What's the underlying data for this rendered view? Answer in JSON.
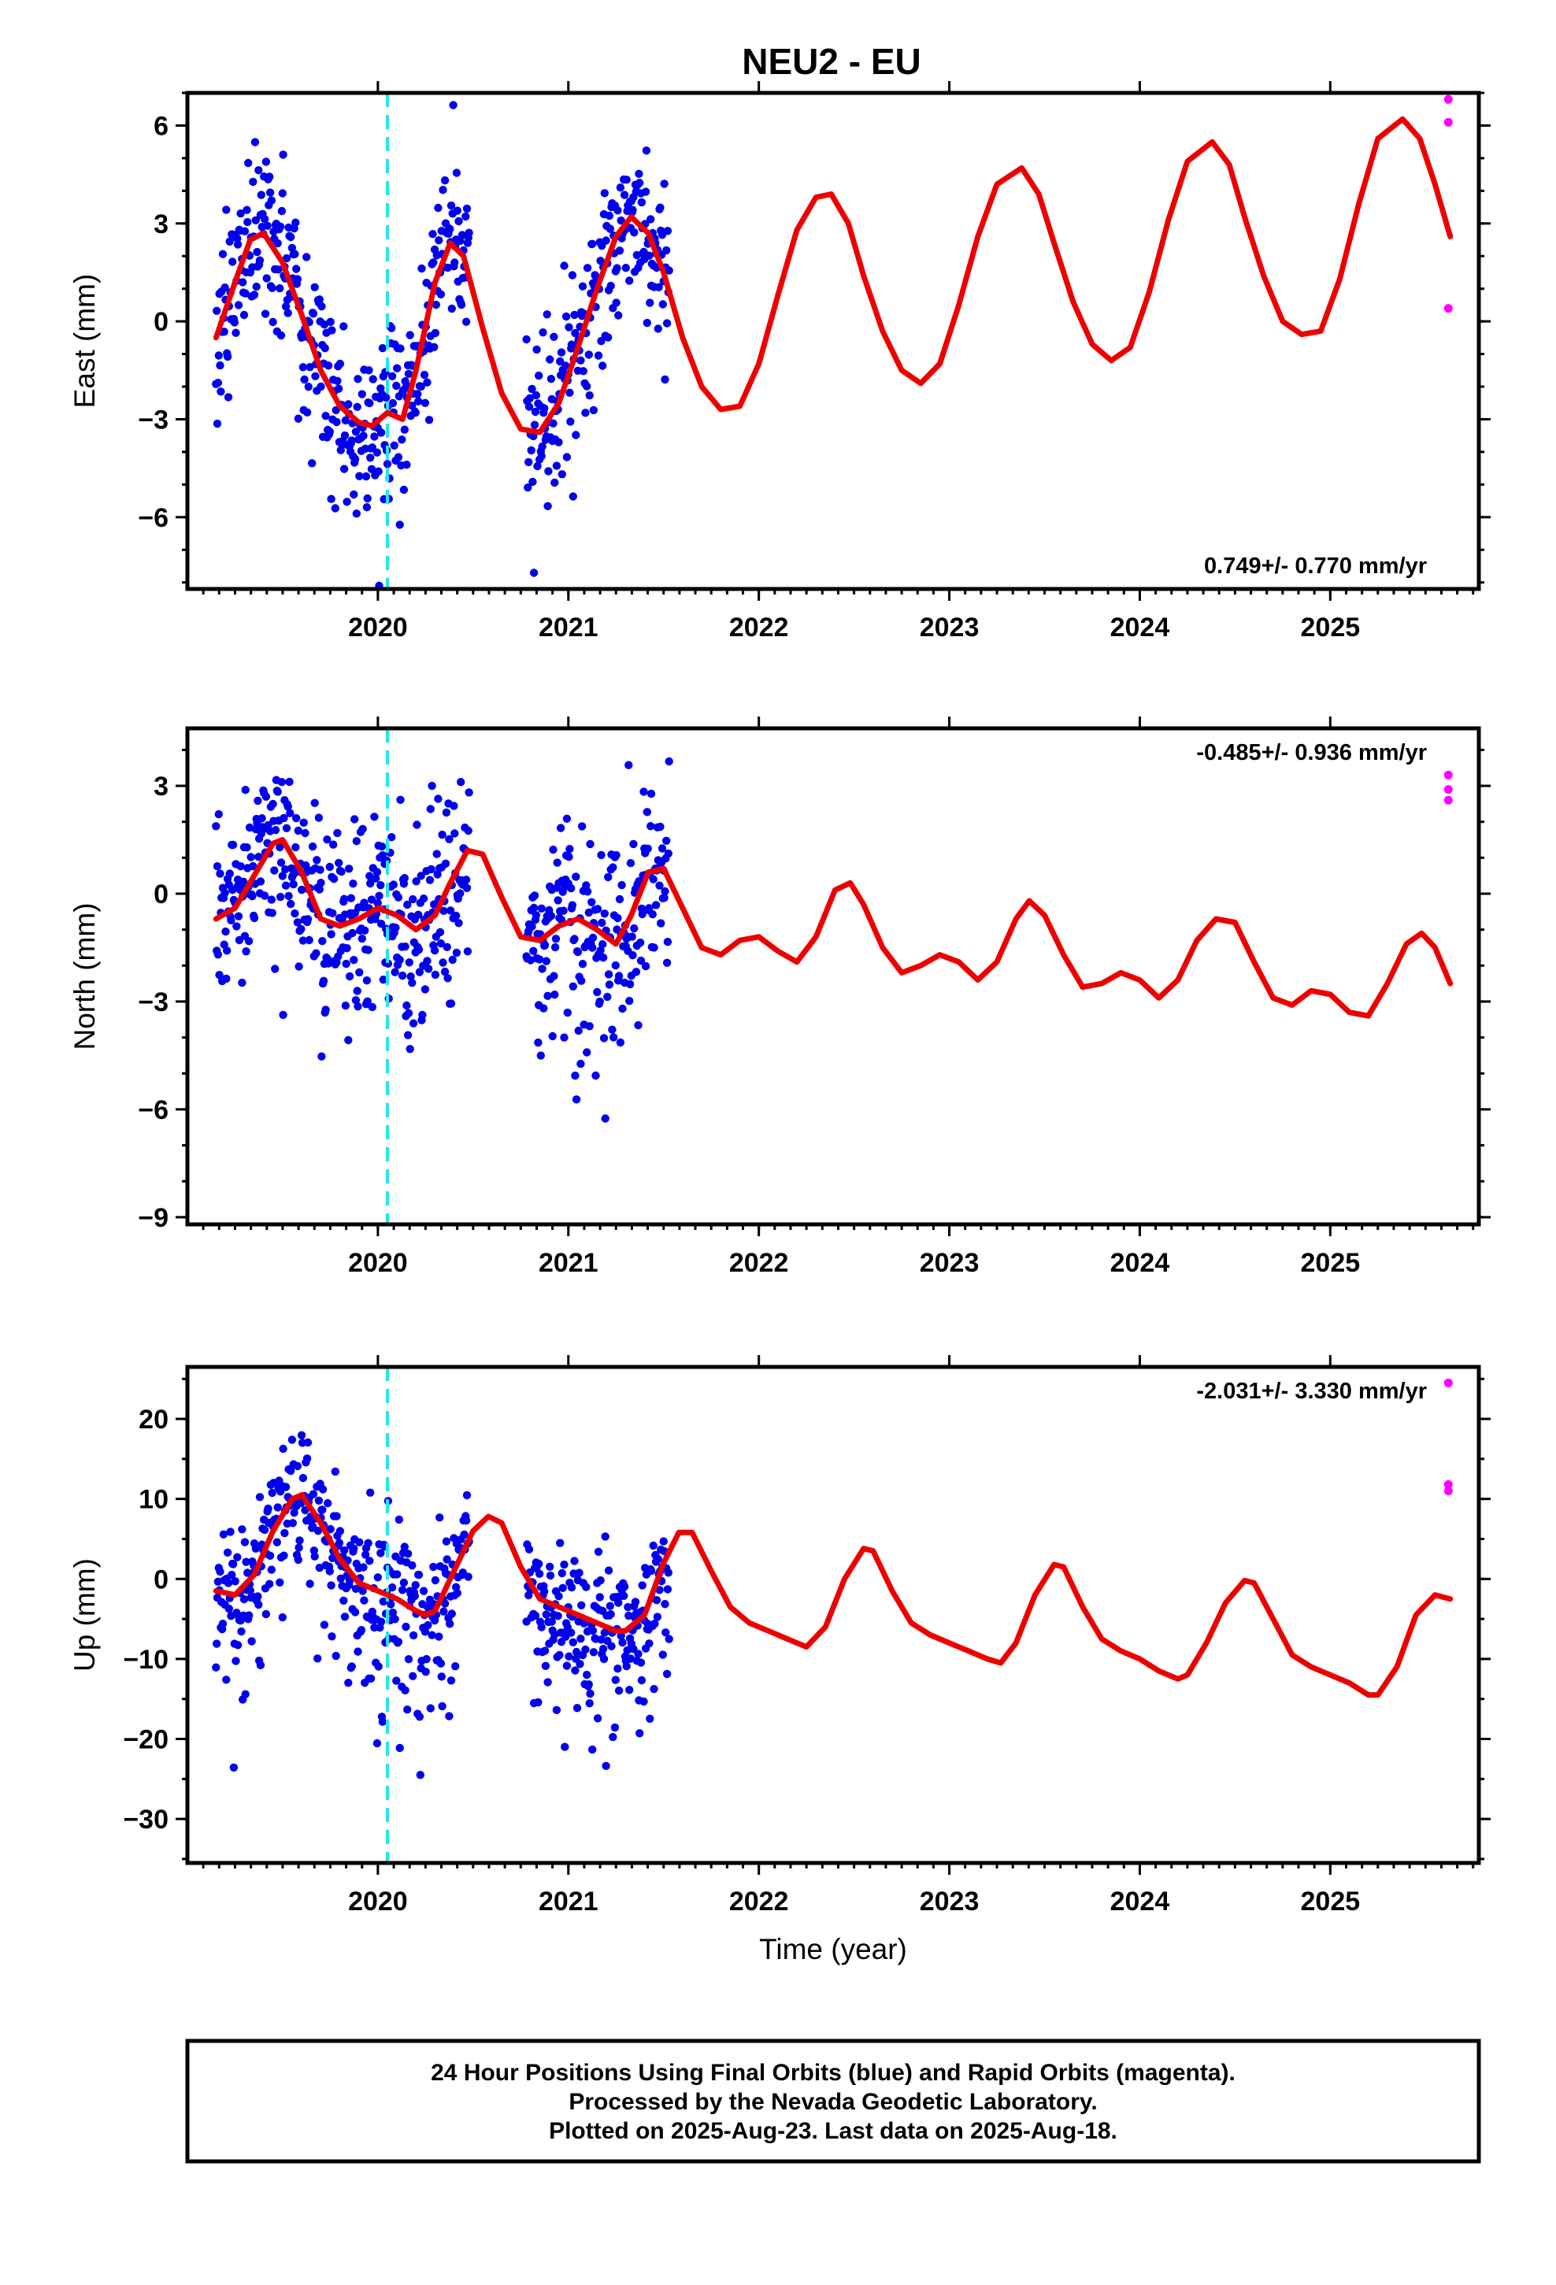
{
  "title": "NEU2 - EU",
  "colors": {
    "final_orbits": "#0000ee",
    "rapid_orbits": "#ff00ff",
    "model_fit": "#ee0000",
    "event_line": "#22e5f0"
  },
  "xlabel": "Time (year)",
  "xlim": [
    2019.0,
    2025.78
  ],
  "x_ticks": [
    2020,
    2021,
    2022,
    2023,
    2024,
    2025
  ],
  "event_line_x": 2020.05,
  "footer": {
    "lines": [
      "24 Hour Positions Using Final Orbits (blue) and Rapid Orbits (magenta).",
      "Processed by the Nevada Geodetic Laboratory.",
      "Plotted on 2025-Aug-23. Last data on 2025-Aug-18."
    ]
  },
  "chart_data": [
    {
      "type": "scatter",
      "component": "east",
      "ylabel": "East (mm)",
      "ylim": [
        -8.2,
        7.0
      ],
      "y_ticks": [
        6,
        3,
        0,
        -3,
        -6
      ],
      "rate_label": "0.749+/- 0.770 mm/yr",
      "rate_label_position": "bottom-right",
      "model_fit": {
        "type": "line",
        "x": [
          2019.15,
          2019.25,
          2019.33,
          2019.4,
          2019.5,
          2019.6,
          2019.7,
          2019.8,
          2019.9,
          2019.97,
          2020.05,
          2020.13,
          2020.2,
          2020.3,
          2020.38,
          2020.45,
          2020.55,
          2020.65,
          2020.75,
          2020.85,
          2020.95,
          2021.05,
          2021.15,
          2021.25,
          2021.33,
          2021.42,
          2021.5,
          2021.6,
          2021.7,
          2021.8,
          2021.9,
          2022.0,
          2022.1,
          2022.2,
          2022.3,
          2022.38,
          2022.47,
          2022.55,
          2022.65,
          2022.75,
          2022.85,
          2022.95,
          2023.05,
          2023.15,
          2023.25,
          2023.38,
          2023.47,
          2023.55,
          2023.65,
          2023.75,
          2023.85,
          2023.95,
          2024.05,
          2024.15,
          2024.25,
          2024.38,
          2024.47,
          2024.55,
          2024.65,
          2024.75,
          2024.85,
          2024.95,
          2025.05,
          2025.15,
          2025.25,
          2025.38,
          2025.47,
          2025.55,
          2025.63
        ],
        "y": [
          -0.5,
          1.2,
          2.5,
          2.7,
          1.8,
          0.2,
          -1.5,
          -2.6,
          -3.1,
          -3.2,
          -2.8,
          -3.0,
          -1.5,
          1.2,
          2.4,
          2.0,
          -0.2,
          -2.2,
          -3.3,
          -3.4,
          -2.5,
          -0.8,
          1.0,
          2.6,
          3.2,
          2.7,
          1.5,
          -0.5,
          -2.0,
          -2.7,
          -2.6,
          -1.3,
          0.8,
          2.8,
          3.8,
          3.9,
          3.0,
          1.4,
          -0.3,
          -1.5,
          -1.9,
          -1.3,
          0.5,
          2.6,
          4.2,
          4.7,
          3.9,
          2.4,
          0.6,
          -0.7,
          -1.2,
          -0.8,
          0.9,
          3.1,
          4.9,
          5.5,
          4.8,
          3.2,
          1.4,
          0.0,
          -0.4,
          -0.3,
          1.3,
          3.6,
          5.6,
          6.2,
          5.6,
          4.2,
          2.6
        ]
      },
      "rapid_points": {
        "x": [
          2025.62,
          2025.62,
          2025.62
        ],
        "y": [
          6.8,
          6.1,
          0.4
        ]
      }
    },
    {
      "type": "scatter",
      "component": "north",
      "ylabel": "North (mm)",
      "ylim": [
        -9.2,
        4.6
      ],
      "y_ticks": [
        3,
        0,
        -3,
        -6,
        -9
      ],
      "rate_label": "-0.485+/- 0.936 mm/yr",
      "rate_label_position": "top-right",
      "model_fit": {
        "type": "line",
        "x": [
          2019.15,
          2019.25,
          2019.35,
          2019.45,
          2019.5,
          2019.6,
          2019.7,
          2019.8,
          2019.9,
          2020.0,
          2020.1,
          2020.2,
          2020.3,
          2020.38,
          2020.47,
          2020.55,
          2020.65,
          2020.75,
          2020.85,
          2020.95,
          2021.05,
          2021.15,
          2021.25,
          2021.33,
          2021.42,
          2021.5,
          2021.6,
          2021.7,
          2021.8,
          2021.9,
          2022.0,
          2022.1,
          2022.2,
          2022.3,
          2022.4,
          2022.48,
          2022.55,
          2022.65,
          2022.75,
          2022.85,
          2022.95,
          2023.05,
          2023.15,
          2023.25,
          2023.35,
          2023.42,
          2023.5,
          2023.6,
          2023.7,
          2023.8,
          2023.9,
          2024.0,
          2024.1,
          2024.2,
          2024.3,
          2024.4,
          2024.5,
          2024.6,
          2024.7,
          2024.8,
          2024.9,
          2025.0,
          2025.1,
          2025.2,
          2025.3,
          2025.4,
          2025.48,
          2025.55,
          2025.63
        ],
        "y": [
          -0.7,
          -0.4,
          0.5,
          1.4,
          1.5,
          0.6,
          -0.7,
          -0.9,
          -0.7,
          -0.4,
          -0.6,
          -1.0,
          -0.6,
          0.3,
          1.2,
          1.1,
          -0.1,
          -1.2,
          -1.3,
          -0.9,
          -0.7,
          -1.0,
          -1.4,
          -0.6,
          0.6,
          0.7,
          -0.4,
          -1.5,
          -1.7,
          -1.3,
          -1.2,
          -1.6,
          -1.9,
          -1.2,
          0.1,
          0.3,
          -0.3,
          -1.5,
          -2.2,
          -2.0,
          -1.7,
          -1.9,
          -2.4,
          -1.9,
          -0.7,
          -0.2,
          -0.6,
          -1.7,
          -2.6,
          -2.5,
          -2.2,
          -2.4,
          -2.9,
          -2.4,
          -1.3,
          -0.7,
          -0.8,
          -1.9,
          -2.9,
          -3.1,
          -2.7,
          -2.8,
          -3.3,
          -3.4,
          -2.5,
          -1.4,
          -1.1,
          -1.5,
          -2.5
        ]
      },
      "rapid_points": {
        "x": [
          2025.62,
          2025.62,
          2025.62
        ],
        "y": [
          3.3,
          2.9,
          2.6
        ]
      }
    },
    {
      "type": "scatter",
      "component": "up",
      "ylabel": "Up (mm)",
      "ylim": [
        -35.5,
        26.5
      ],
      "y_ticks": [
        20,
        10,
        0,
        -10,
        -20,
        -30
      ],
      "rate_label": "-2.031+/- 3.330 mm/yr",
      "rate_label_position": "top-right",
      "model_fit": {
        "type": "line",
        "x": [
          2019.15,
          2019.25,
          2019.35,
          2019.45,
          2019.55,
          2019.6,
          2019.7,
          2019.8,
          2019.9,
          2020.0,
          2020.1,
          2020.2,
          2020.25,
          2020.3,
          2020.4,
          2020.5,
          2020.58,
          2020.65,
          2020.75,
          2020.85,
          2020.95,
          2021.05,
          2021.15,
          2021.25,
          2021.3,
          2021.4,
          2021.5,
          2021.58,
          2021.65,
          2021.75,
          2021.85,
          2021.95,
          2022.05,
          2022.15,
          2022.25,
          2022.35,
          2022.45,
          2022.55,
          2022.6,
          2022.7,
          2022.8,
          2022.9,
          2023.0,
          2023.1,
          2023.2,
          2023.27,
          2023.35,
          2023.45,
          2023.55,
          2023.6,
          2023.7,
          2023.8,
          2023.9,
          2024.0,
          2024.1,
          2024.2,
          2024.25,
          2024.35,
          2024.45,
          2024.55,
          2024.6,
          2024.7,
          2024.8,
          2024.9,
          2025.0,
          2025.1,
          2025.2,
          2025.25,
          2025.35,
          2025.45,
          2025.55,
          2025.63
        ],
        "y": [
          -1.5,
          -2.0,
          0.5,
          6.0,
          10.0,
          10.5,
          7.0,
          2.5,
          -0.5,
          -1.5,
          -2.5,
          -4.0,
          -4.5,
          -4.0,
          1.0,
          6.0,
          7.8,
          7.0,
          1.5,
          -2.5,
          -3.5,
          -4.5,
          -5.5,
          -6.5,
          -6.5,
          -4.5,
          2.0,
          5.8,
          5.8,
          1.0,
          -3.5,
          -5.5,
          -6.5,
          -7.5,
          -8.5,
          -6.0,
          0.0,
          3.8,
          3.5,
          -1.5,
          -5.5,
          -7.0,
          -8.0,
          -9.0,
          -10.0,
          -10.5,
          -8.0,
          -2.0,
          1.8,
          1.5,
          -3.5,
          -7.5,
          -9.0,
          -10.0,
          -11.5,
          -12.5,
          -12.0,
          -8.0,
          -3.0,
          -0.2,
          -0.5,
          -5.0,
          -9.5,
          -11.0,
          -12.0,
          -13.0,
          -14.5,
          -14.5,
          -11.0,
          -4.5,
          -2.0,
          -2.5
        ]
      },
      "rapid_points": {
        "x": [
          2025.62,
          2025.62,
          2025.62
        ],
        "y": [
          24.5,
          11.8,
          11.0
        ]
      }
    }
  ]
}
